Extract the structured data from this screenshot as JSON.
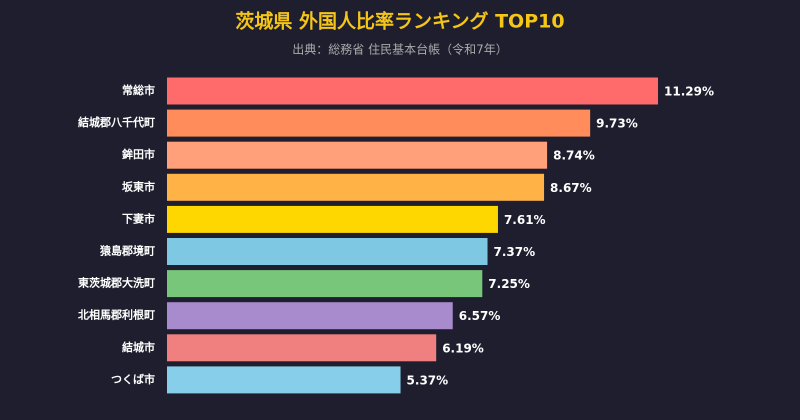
{
  "chart_data": {
    "type": "hbar",
    "title": "茨城県 外国人比率ランキング TOP10",
    "subtitle": "出典：総務省 住民基本台帳（令和7年）",
    "categories": [
      "常総市",
      "結城郡八千代町",
      "鉾田市",
      "坂東市",
      "下妻市",
      "猿島郡境町",
      "東茨城郡大洗町",
      "北相馬郡利根町",
      "結城市",
      "つくば市"
    ],
    "values": [
      11.29,
      9.73,
      8.74,
      8.67,
      7.61,
      7.37,
      7.25,
      6.57,
      6.19,
      5.37
    ],
    "value_labels": [
      "11.29%",
      "9.73%",
      "8.74%",
      "8.67%",
      "7.61%",
      "7.37%",
      "7.25%",
      "6.57%",
      "6.19%",
      "5.37%"
    ],
    "colors": [
      "#ff6b6b",
      "#ff8c5a",
      "#ffa07a",
      "#ffb347",
      "#ffd700",
      "#7ec8e3",
      "#77c67a",
      "#a78bcd",
      "#f08080",
      "#87ceeb"
    ]
  }
}
